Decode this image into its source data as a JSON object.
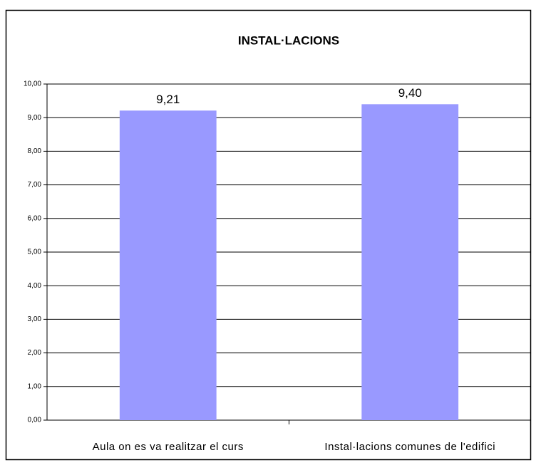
{
  "chart_data": {
    "type": "bar",
    "title": "INSTAL·LACIONS",
    "categories": [
      "Aula on es va realitzar el curs",
      "Instal·lacions comunes de l'edifici"
    ],
    "values": [
      9.21,
      9.4
    ],
    "value_labels": [
      "9,21",
      "9,40"
    ],
    "color": "#9999ff",
    "ylim": [
      0,
      10
    ],
    "yticks": [
      {
        "value": 0,
        "label": "0,00"
      },
      {
        "value": 1,
        "label": "1,00"
      },
      {
        "value": 2,
        "label": "2,00"
      },
      {
        "value": 3,
        "label": "3,00"
      },
      {
        "value": 4,
        "label": "4,00"
      },
      {
        "value": 5,
        "label": "5,00"
      },
      {
        "value": 6,
        "label": "6,00"
      },
      {
        "value": 7,
        "label": "7,00"
      },
      {
        "value": 8,
        "label": "8,00"
      },
      {
        "value": 9,
        "label": "9,00"
      },
      {
        "value": 10,
        "label": "10,00"
      }
    ],
    "grid": true
  }
}
